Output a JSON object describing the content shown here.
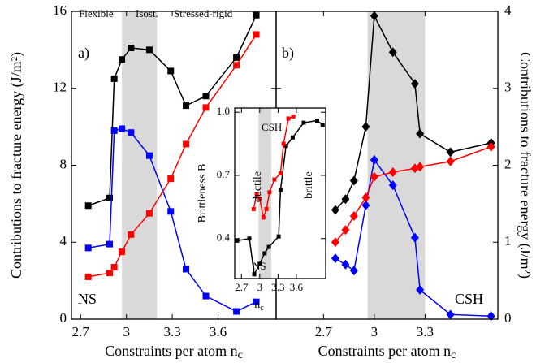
{
  "chart_data": [
    {
      "type": "line",
      "ylabel": "Contributions to fracture energy (J/m²)",
      "xlabel": "Constraints per atom n",
      "xlabel_sub": "c",
      "xlim": [
        2.64,
        3.98
      ],
      "xticks": [
        2.7,
        3,
        3.3,
        3.6
      ],
      "ylim": [
        0,
        16
      ],
      "yticks": [
        0,
        4,
        8,
        12,
        16
      ],
      "shade": [
        2.97,
        3.2
      ],
      "marker": "square",
      "annotations": [
        {
          "text": "Flexible",
          "color": "#00a000"
        },
        {
          "text": "Isost.",
          "color": "#0000ff"
        },
        {
          "text": "Stressed-rigid",
          "color": "#ff0000"
        },
        {
          "text": "a)",
          "color": "#000000"
        },
        {
          "text": "NS",
          "color": "#000000"
        }
      ],
      "x": [
        2.75,
        2.89,
        2.92,
        2.97,
        3.03,
        3.15,
        3.29,
        3.39,
        3.52,
        3.72,
        3.85
      ],
      "series": [
        {
          "color": "#000000",
          "values": [
            5.9,
            6.3,
            12.5,
            13.5,
            14.1,
            14.0,
            12.9,
            11.1,
            11.6,
            13.6,
            15.8
          ]
        },
        {
          "color": "#0000ff",
          "values": [
            3.7,
            3.9,
            9.8,
            9.9,
            9.7,
            8.5,
            5.6,
            2.6,
            1.2,
            0.4,
            0.9
          ]
        },
        {
          "color": "#ff0000",
          "values": [
            2.2,
            2.4,
            2.7,
            3.5,
            4.4,
            5.5,
            7.3,
            9.1,
            11.0,
            13.2,
            14.8
          ]
        }
      ]
    },
    {
      "type": "line",
      "ylabel": "Contributions to fracture energy (J/m²)",
      "xlabel": "Constraints per atom n",
      "xlabel_sub": "c",
      "xlim": [
        2.42,
        3.73
      ],
      "xticks": [
        2.7,
        3,
        3.3
      ],
      "ylim": [
        0,
        4
      ],
      "yticks": [
        0,
        1,
        2,
        3,
        4
      ],
      "shade": [
        2.96,
        3.3
      ],
      "marker": "diamond",
      "annotations": [
        {
          "text": "b)",
          "color": "#000000"
        },
        {
          "text": "CSH",
          "color": "#000000"
        }
      ],
      "x": [
        2.77,
        2.83,
        2.88,
        2.95,
        3.0,
        3.11,
        3.24,
        3.27,
        3.45,
        3.69
      ],
      "series": [
        {
          "color": "#000000",
          "values": [
            1.42,
            1.56,
            1.8,
            2.5,
            3.94,
            3.47,
            3.06,
            2.41,
            2.17,
            2.29
          ]
        },
        {
          "color": "#0000ff",
          "values": [
            0.79,
            0.71,
            0.63,
            1.48,
            2.07,
            1.74,
            1.06,
            0.38,
            0.06,
            0.04
          ]
        },
        {
          "color": "#ff0000",
          "values": [
            1.0,
            1.16,
            1.34,
            1.58,
            1.85,
            1.91,
            1.96,
            1.98,
            2.05,
            2.24
          ]
        }
      ]
    },
    {
      "type": "line",
      "ylabel": "Brittleness B",
      "xlabel": "n",
      "xlabel_sub": "c",
      "xlim": [
        2.59,
        4.08
      ],
      "xticks": [
        2.7,
        3,
        3.3,
        3.6
      ],
      "ylim": [
        0.21,
        1.02
      ],
      "yticks": [
        0.4,
        0.7,
        {
          "value": 1,
          "label": "1.0"
        }
      ],
      "shade": [
        2.98,
        3.19
      ],
      "marker": "small",
      "annotations": [
        {
          "text": "CSH",
          "color": "#ff0000"
        },
        {
          "text": "NS",
          "color": "#000000"
        },
        {
          "text": "ductile",
          "color": "#000000"
        },
        {
          "text": "brittle",
          "color": "#000000"
        }
      ],
      "series": [
        {
          "color": "#000000",
          "x": [
            2.63,
            2.83,
            2.91,
            3.0,
            3.08,
            3.15,
            3.31,
            3.34,
            3.43,
            3.54,
            3.72,
            3.94,
            4.03
          ],
          "values": [
            0.39,
            0.4,
            0.23,
            0.28,
            0.33,
            0.36,
            0.41,
            0.63,
            0.84,
            0.88,
            0.95,
            0.96,
            0.94
          ]
        },
        {
          "color": "#ff0000",
          "x": [
            2.9,
            2.95,
            3.0,
            3.06,
            3.11,
            3.16,
            3.24,
            3.34,
            3.39,
            3.47,
            3.55
          ],
          "values": [
            0.54,
            0.61,
            0.59,
            0.5,
            0.54,
            0.62,
            0.68,
            0.71,
            0.85,
            0.97,
            0.98
          ]
        }
      ]
    }
  ]
}
